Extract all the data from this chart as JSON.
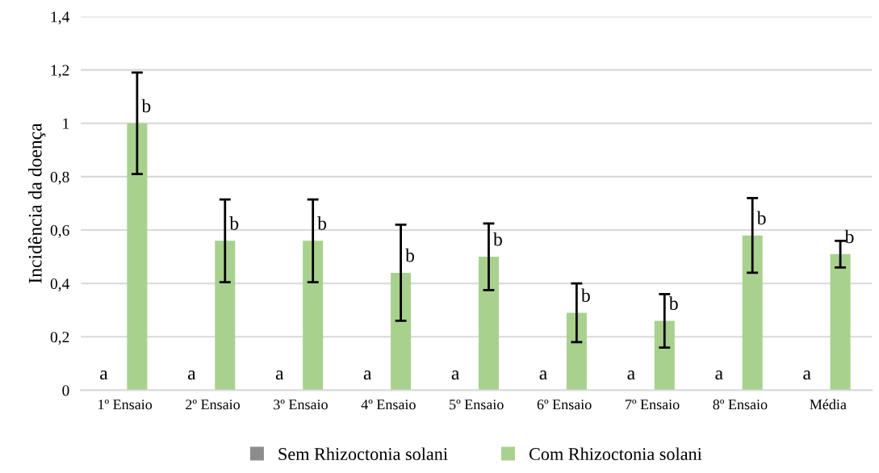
{
  "chart_data": {
    "type": "bar",
    "ylabel": "Incidência da doença",
    "categories": [
      "1º Ensaio",
      "2º Ensaio",
      "3º Ensaio",
      "4º Ensaio",
      "5º Ensaio",
      "6º Ensaio",
      "7º Ensaio",
      "8º Ensaio",
      "Média"
    ],
    "series": [
      {
        "name": "Sem Rhizoctonia solani",
        "color": "#8c8c8c",
        "values": [
          0,
          0,
          0,
          0,
          0,
          0,
          0,
          0,
          0
        ]
      },
      {
        "name": "Com Rhizoctonia solani",
        "color": "#a9d18e",
        "values": [
          1.0,
          0.56,
          0.56,
          0.44,
          0.5,
          0.29,
          0.26,
          0.58,
          0.51
        ],
        "errors": [
          0.19,
          0.155,
          0.155,
          0.18,
          0.125,
          0.11,
          0.1,
          0.14,
          0.05
        ]
      }
    ],
    "ylim": [
      0,
      1.4
    ],
    "yticks": [
      0,
      {
        "value": 0.2,
        "label": "0,2"
      },
      {
        "value": 0.4,
        "label": "0,4"
      },
      {
        "value": 0.6,
        "label": "0,6"
      },
      {
        "value": 0.8,
        "label": "0,8"
      },
      1,
      {
        "value": 1.2,
        "label": "1,2"
      },
      {
        "value": 1.4,
        "label": "1,4"
      }
    ],
    "grid": "y",
    "legend": "bottom",
    "annotations": [
      {
        "text": "a",
        "x": "1º Ensaio",
        "y": 0
      },
      {
        "text": "a",
        "x": "2º Ensaio",
        "y": 0
      },
      {
        "text": "a",
        "x": "3º Ensaio",
        "y": 0
      },
      {
        "text": "a",
        "x": "4º Ensaio",
        "y": 0
      },
      {
        "text": "a",
        "x": "5º Ensaio",
        "y": 0
      },
      {
        "text": "a",
        "x": "6º Ensaio",
        "y": 0
      },
      {
        "text": "a",
        "x": "7º Ensaio",
        "y": 0
      },
      {
        "text": "a",
        "x": "8º Ensaio",
        "y": 0
      },
      {
        "text": "a",
        "x": "Média",
        "y": 0
      },
      {
        "text": "b",
        "x": "1º Ensaio",
        "y": 1.0
      },
      {
        "text": "b",
        "x": "2º Ensaio",
        "y": 0.56
      },
      {
        "text": "b",
        "x": "3º Ensaio",
        "y": 0.56
      },
      {
        "text": "b",
        "x": "4º Ensaio",
        "y": 0.44
      },
      {
        "text": "b",
        "x": "5º Ensaio",
        "y": 0.5
      },
      {
        "text": "b",
        "x": "6º Ensaio",
        "y": 0.29
      },
      {
        "text": "b",
        "x": "7º Ensaio",
        "y": 0.26
      },
      {
        "text": "b",
        "x": "8º Ensaio",
        "y": 0.58
      },
      {
        "text": "b",
        "x": "Média",
        "y": 0.51
      }
    ]
  }
}
